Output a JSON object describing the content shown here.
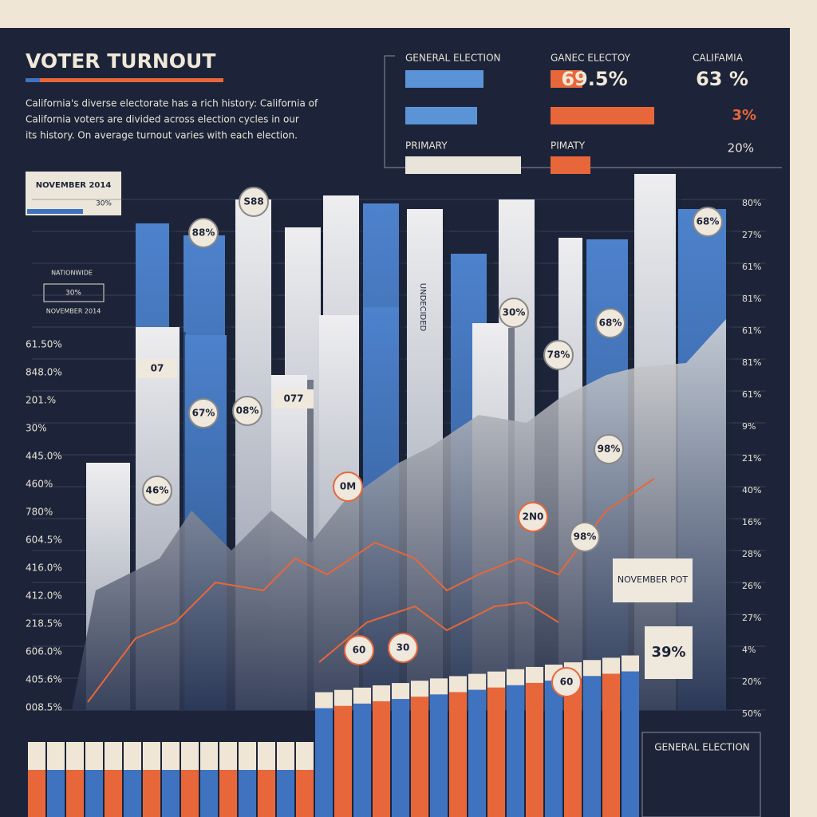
{
  "header": {
    "title": "VOTER TURNOUT",
    "description": [
      "California's diverse electorate has a rich history: California of",
      "California voters are divided across election cycles in our",
      "its history. On average turnout varies with each election."
    ]
  },
  "stats": {
    "columns": [
      {
        "heading": "GENERAL ELECTION",
        "label": "PRIMARY"
      },
      {
        "heading": "GANEC ELECTOY",
        "value": "69.5%",
        "sub_value": "3%",
        "label": "PIMATY"
      },
      {
        "heading": "CALIFAMIA",
        "value": "63 %",
        "sub_value": "20%"
      }
    ]
  },
  "side_notes": {
    "box_title": "NOVEMBER 2014",
    "box_value": "30%",
    "note_title": "NATIONWIDE",
    "note_value": "30%",
    "note_sub": "NOVEMBER 2014"
  },
  "left_axis": [
    "61.50%",
    "848.0%",
    "201.%",
    "30%",
    "445.0%",
    "460%",
    "780%",
    "604.5%",
    "416.0%",
    "412.0%",
    "218.5%",
    "606.0%",
    "405.6%",
    "008.5%"
  ],
  "right_axis": [
    "80%",
    "27%",
    "61%",
    "81%",
    "61%",
    "81%",
    "61%",
    "9%",
    "21%",
    "40%",
    "16%",
    "28%",
    "26%",
    "27%",
    "4%",
    "20%",
    "50%"
  ],
  "callouts": [
    "88%",
    "S88",
    "68%",
    "68%",
    "30%",
    "78%",
    "67%",
    "08%",
    "46%",
    "98%",
    "98%",
    "60",
    "30",
    "60",
    "0M",
    "2N0",
    "077",
    "07"
  ],
  "bar_text": "UNDECIDED",
  "notes": {
    "november": "NOVEMBER POT",
    "percent": "39%"
  },
  "legend": {
    "title": "GENERAL ELECTION"
  }
}
